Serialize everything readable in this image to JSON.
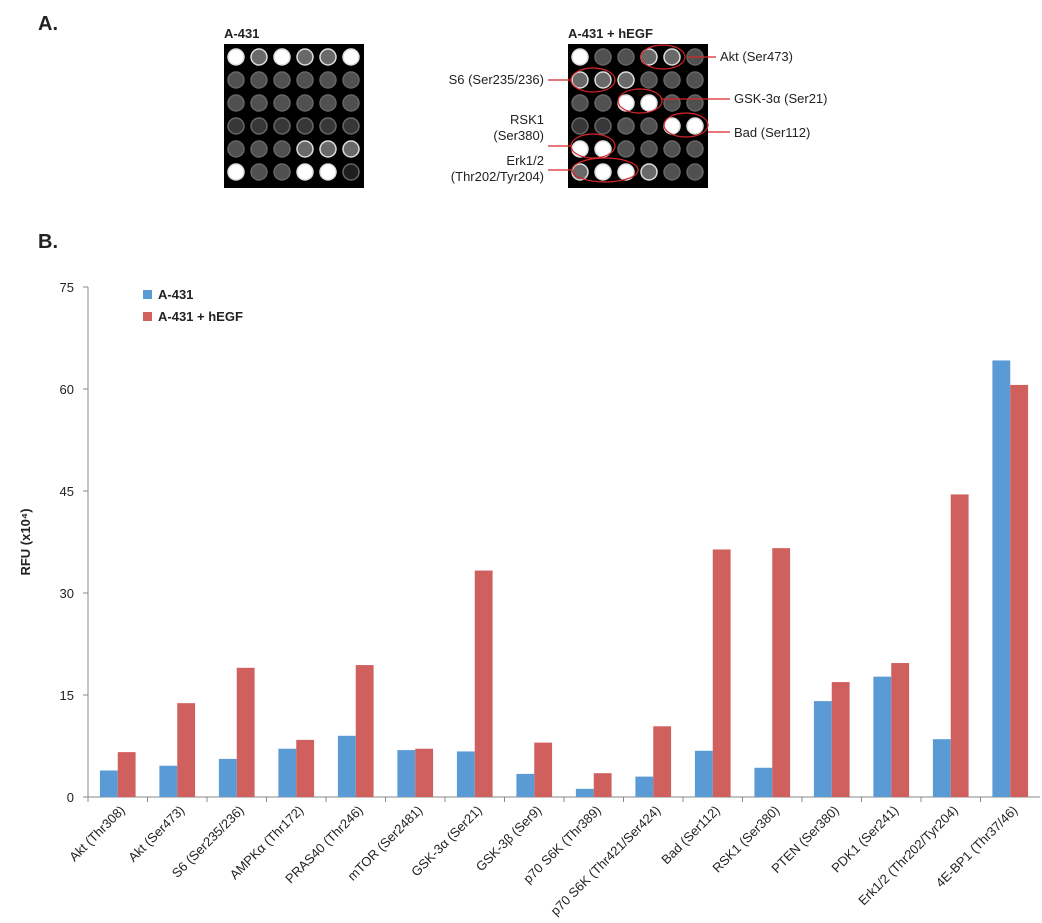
{
  "panel_a": {
    "label": "A.",
    "images": [
      {
        "title": "A-431"
      },
      {
        "title": "A-431 + hEGF"
      }
    ],
    "callouts": [
      {
        "lines": [
          "Akt (Ser473)"
        ]
      },
      {
        "lines": [
          "S6 (Ser235/236)"
        ]
      },
      {
        "lines": [
          "GSK-3α (Ser21)"
        ]
      },
      {
        "lines": [
          "RSK1",
          "(Ser380)"
        ]
      },
      {
        "lines": [
          "Bad (Ser112)"
        ]
      },
      {
        "lines": [
          "Erk1/2",
          "(Thr202/Tyr204)"
        ]
      }
    ]
  },
  "panel_b_label": "B.",
  "chart_data": {
    "type": "bar",
    "y_label": "RFU (x10⁴)",
    "categories": [
      "Akt (Thr308)",
      "Akt (Ser473)",
      "S6 (Ser235/236)",
      "AMPKα (Thr172)",
      "PRAS40 (Thr246)",
      "mTOR (Ser2481)",
      "GSK-3α (Ser21)",
      "GSK-3β (Ser9)",
      "p70 S6K (Thr389)",
      "p70 S6K (Thr421/Ser424)",
      "Bad (Ser112)",
      "RSK1 (Ser380)",
      "PTEN (Ser380)",
      "PDK1 (Ser241)",
      "Erk1/2 (Thr202/Tyr204)",
      "4E-BP1 (Thr37/46)"
    ],
    "series": [
      {
        "name": "A-431",
        "color": "#5b9bd5",
        "values": [
          3.9,
          4.6,
          5.6,
          7.1,
          9.0,
          6.9,
          6.7,
          3.4,
          1.2,
          3.0,
          6.8,
          4.3,
          14.1,
          17.7,
          8.5,
          64.2
        ]
      },
      {
        "name": "A-431 + hEGF",
        "color": "#d0605e",
        "values": [
          6.6,
          13.8,
          19.0,
          8.4,
          19.4,
          7.1,
          33.3,
          8.0,
          3.5,
          10.4,
          36.4,
          36.6,
          16.9,
          19.7,
          44.5,
          60.6
        ]
      }
    ],
    "ylim": [
      0,
      75
    ],
    "yticks": [
      0,
      15,
      30,
      45,
      60,
      75
    ],
    "grid": false,
    "legend": "top-left"
  }
}
